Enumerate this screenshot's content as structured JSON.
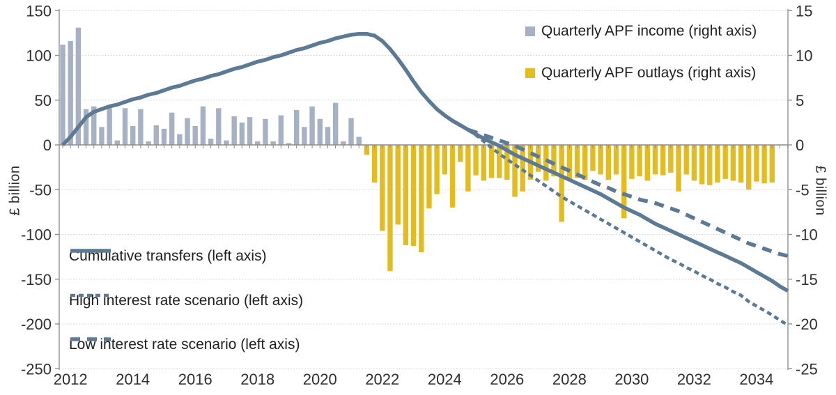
{
  "chart_data": {
    "type": "combo-bar-line",
    "title": "",
    "x_axis": {
      "start_year": 2012,
      "periods": "quarterly",
      "year_tick_labels": [
        "2012",
        "2014",
        "2016",
        "2018",
        "2020",
        "2022",
        "2024",
        "2026",
        "2028",
        "2030",
        "2032",
        "2034"
      ]
    },
    "left_axis": {
      "title": "£ billion",
      "min": -250,
      "max": 150,
      "ticks": [
        150,
        100,
        50,
        0,
        -50,
        -100,
        -150,
        -200,
        -250
      ]
    },
    "right_axis": {
      "title": "£ billion",
      "min": -25,
      "max": 15,
      "ticks": [
        15,
        10,
        5,
        0,
        -5,
        -10,
        -15,
        -20,
        -25
      ]
    },
    "colors": {
      "income_bar": "#a7b1c4",
      "outlays_bar": "#e3bc20",
      "line": "#5c7a94",
      "gridline": "#cccccc",
      "zero_line": "#8c8c8c",
      "axis_line": "#909090",
      "axis_text": "#303030"
    },
    "series": {
      "income": {
        "label": "Quarterly APF income (right axis)",
        "kind": "bar",
        "axis": "right",
        "start_quarter": 0,
        "values": [
          11.2,
          11.6,
          13.1,
          4,
          4.3,
          2,
          4.2,
          0.5,
          4.1,
          2.1,
          4,
          0.4,
          2.2,
          1.8,
          3.6,
          1.2,
          3,
          2.1,
          4.3,
          0.7,
          4.1,
          0.5,
          3.2,
          2.5,
          3.1,
          0.4,
          2.9,
          0.4,
          3.3,
          0.2,
          3.9,
          2,
          4.3,
          2.9,
          2,
          4.7,
          0.4,
          3,
          0.9
        ]
      },
      "outlays": {
        "label": "Quarterly APF outlays (right axis)",
        "kind": "bar",
        "axis": "right",
        "start_quarter": 39,
        "values": [
          -1.1,
          -4.2,
          -9.6,
          -14.1,
          -8.9,
          -11.2,
          -11.3,
          -12,
          -7.1,
          -5.5,
          -3.3,
          -7,
          -1.9,
          -5.2,
          -3.4,
          -4,
          -3.7,
          -3.7,
          -3.9,
          -5.8,
          -5.2,
          -3.9,
          -3,
          -4,
          -3.5,
          -8.6,
          -3.8,
          -3.7,
          -3.9,
          -2.9,
          -3.3,
          -3.9,
          -3.3,
          -8.2,
          -3.8,
          -3.5,
          -4,
          -3.3,
          -3.4,
          -3.1,
          -5.2,
          -3.3,
          -4,
          -4.4,
          -4.5,
          -4.2,
          -3.8,
          -4,
          -4.2,
          -5,
          -4.1,
          -4.3,
          -4.2
        ]
      },
      "cumulative": {
        "label": "Cumulative transfers (left axis)",
        "kind": "line",
        "axis": "left",
        "dash": "solid",
        "start_quarter": 0,
        "values": [
          0,
          9,
          20,
          31,
          37,
          40,
          43,
          45,
          48,
          51,
          53,
          56,
          58,
          61,
          64,
          66,
          69,
          72,
          74,
          77,
          79,
          82,
          85,
          87,
          90,
          93,
          95,
          98,
          100,
          103,
          106,
          108,
          111,
          114,
          116,
          119,
          121,
          123,
          124,
          124,
          122,
          116,
          107,
          96,
          84,
          71,
          59,
          49,
          40,
          33,
          27,
          22,
          17,
          12,
          7,
          3,
          -1,
          -6,
          -11,
          -15,
          -19,
          -23,
          -27,
          -31,
          -35,
          -39,
          -43,
          -47,
          -51,
          -55,
          -60,
          -65,
          -70,
          -74,
          -78,
          -83,
          -88,
          -92,
          -96,
          -100,
          -104,
          -108,
          -112,
          -116,
          -120,
          -124,
          -128,
          -132,
          -137,
          -142,
          -147,
          -152,
          -158,
          -163
        ]
      },
      "high": {
        "label": "High interest rate scenario (left axis)",
        "kind": "line",
        "axis": "left",
        "dash": "short",
        "start_quarter": 52,
        "values": [
          17,
          11,
          4,
          -3,
          -10,
          -16,
          -22,
          -28,
          -34,
          -40,
          -46,
          -52,
          -58,
          -63,
          -68,
          -73,
          -78,
          -83,
          -88,
          -93,
          -98,
          -103,
          -108,
          -113,
          -118,
          -123,
          -128,
          -132,
          -137,
          -141,
          -146,
          -150,
          -155,
          -159,
          -164,
          -168,
          -175,
          -180,
          -185,
          -190,
          -196,
          -201
        ]
      },
      "low": {
        "label": "Low interest rate scenario (left axis)",
        "kind": "line",
        "axis": "left",
        "dash": "long",
        "start_quarter": 52,
        "values": [
          17,
          14,
          11,
          8,
          5,
          2,
          -1,
          -5,
          -9,
          -13,
          -17,
          -21,
          -25,
          -29,
          -33,
          -37,
          -41,
          -45,
          -48,
          -52,
          -55,
          -58,
          -61,
          -63,
          -65,
          -68,
          -71,
          -74,
          -78,
          -82,
          -86,
          -90,
          -94,
          -98,
          -102,
          -106,
          -110,
          -113,
          -116,
          -119,
          -122,
          -124
        ]
      }
    },
    "legend_position": {
      "bars": "top-right",
      "lines": "bottom-left"
    },
    "grid": "dotted-horizontal"
  }
}
